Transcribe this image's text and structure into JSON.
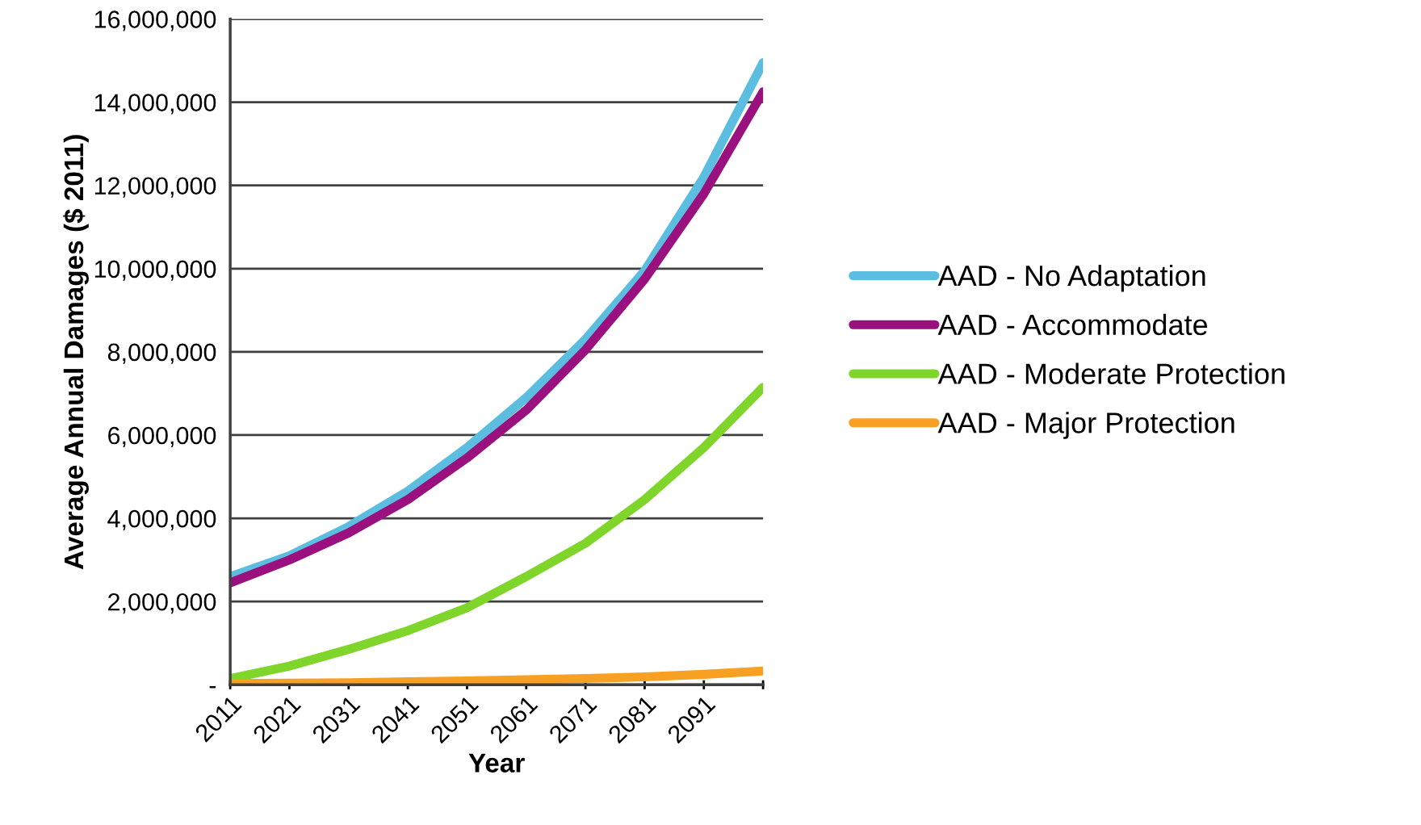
{
  "chart_data": {
    "type": "line",
    "xlabel": "Year",
    "ylabel": "Average Annual Damages ($ 2011)",
    "x": [
      2011,
      2021,
      2031,
      2041,
      2051,
      2061,
      2071,
      2081,
      2091,
      2101
    ],
    "series": [
      {
        "name": "AAD - No Adaptation",
        "color": "#5bbde0",
        "values": [
          2600000,
          3100000,
          3800000,
          4650000,
          5700000,
          6900000,
          8300000,
          9950000,
          12200000,
          14950000
        ]
      },
      {
        "name": "AAD - Accommodate",
        "color": "#9b107f",
        "values": [
          2450000,
          3000000,
          3650000,
          4450000,
          5450000,
          6600000,
          8050000,
          9750000,
          11800000,
          14250000
        ]
      },
      {
        "name": "AAD - Moderate Protection",
        "color": "#7fd52a",
        "values": [
          150000,
          450000,
          850000,
          1300000,
          1850000,
          2600000,
          3400000,
          4450000,
          5700000,
          7150000
        ]
      },
      {
        "name": "AAD - Major Protection",
        "color": "#f7a023",
        "values": [
          30000,
          40000,
          50000,
          70000,
          90000,
          120000,
          150000,
          190000,
          250000,
          330000
        ]
      }
    ],
    "xlim": [
      2011,
      2101
    ],
    "xticks": [
      2011,
      2021,
      2031,
      2041,
      2051,
      2061,
      2071,
      2081,
      2091,
      {
        "value": 2101,
        "label": null
      }
    ],
    "ylim": [
      0,
      16000000
    ],
    "yticks": [
      {
        "value": 0,
        "label": "-"
      },
      {
        "value": 2000000,
        "label": "2,000,000"
      },
      {
        "value": 4000000,
        "label": "4,000,000"
      },
      {
        "value": 6000000,
        "label": "6,000,000"
      },
      {
        "value": 8000000,
        "label": "8,000,000"
      },
      {
        "value": 10000000,
        "label": "10,000,000"
      },
      {
        "value": 12000000,
        "label": "12,000,000"
      },
      {
        "value": 14000000,
        "label": "14,000,000"
      },
      {
        "value": 16000000,
        "label": "16,000,000"
      }
    ],
    "grid": "y",
    "legend": "right",
    "marker": "none",
    "line_style": "solid"
  }
}
